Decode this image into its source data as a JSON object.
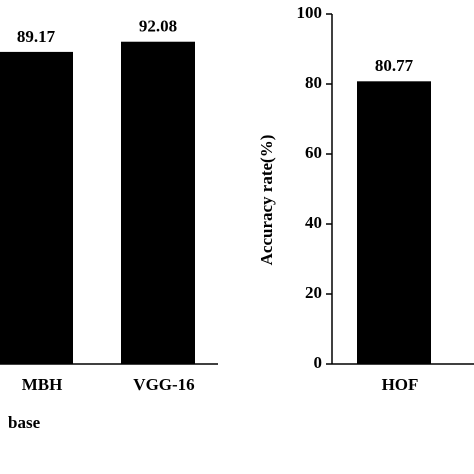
{
  "chart_data": [
    {
      "type": "bar",
      "categories": [
        "MBH",
        "VGG-16"
      ],
      "values": [
        89.17,
        92.08
      ],
      "color": "#000000",
      "ylim": [
        0,
        100
      ],
      "xlabel": "base"
    },
    {
      "type": "bar",
      "categories": [
        "HOF"
      ],
      "values": [
        80.77
      ],
      "color": "#000000",
      "ylim": [
        0,
        100
      ],
      "yticks": [
        0,
        20,
        40,
        60,
        80,
        100
      ],
      "ylabel": "Accuracy rate(%)"
    }
  ]
}
